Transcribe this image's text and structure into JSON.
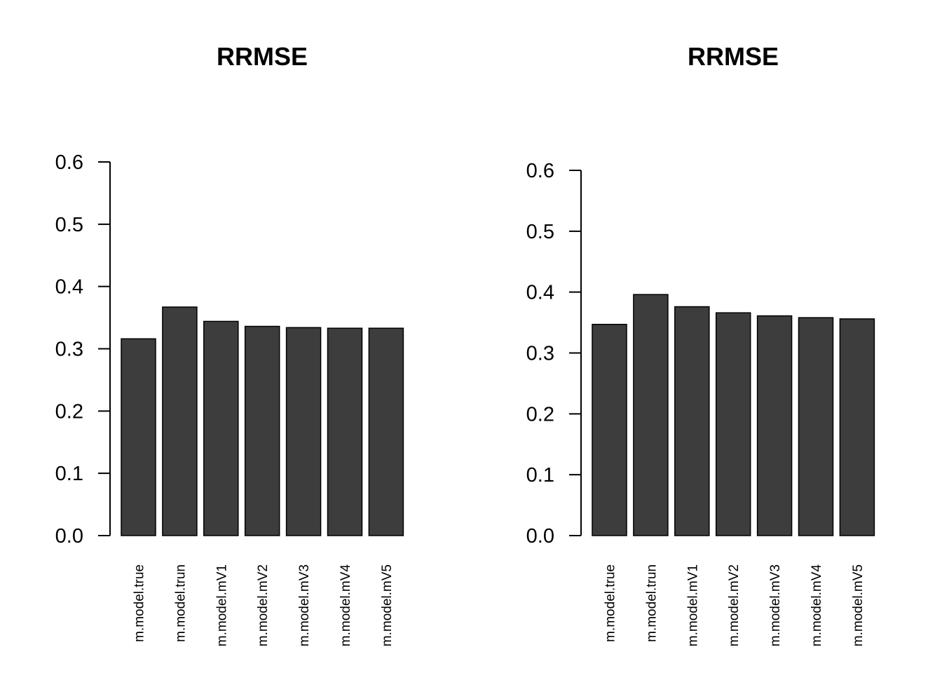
{
  "chart_data": [
    {
      "type": "bar",
      "title": "RRMSE",
      "xlabel": "",
      "ylabel": "",
      "categories": [
        "m.model.true",
        "m.model.trun",
        "m.model.mV1",
        "m.model.mV2",
        "m.model.mV3",
        "m.model.mV4",
        "m.model.mV5"
      ],
      "values": [
        0.316,
        0.367,
        0.344,
        0.336,
        0.334,
        0.333,
        0.333
      ],
      "ylim": [
        0,
        0.6
      ],
      "yticks": [
        "0.0",
        "0.1",
        "0.2",
        "0.3",
        "0.4",
        "0.5",
        "0.6"
      ],
      "bar_color": "#3d3d3d",
      "grid": false
    },
    {
      "type": "bar",
      "title": "RRMSE",
      "xlabel": "",
      "ylabel": "",
      "categories": [
        "m.model.true",
        "m.model.trun",
        "m.model.mV1",
        "m.model.mV2",
        "m.model.mV3",
        "m.model.mV4",
        "m.model.mV5"
      ],
      "values": [
        0.347,
        0.396,
        0.376,
        0.366,
        0.361,
        0.358,
        0.356
      ],
      "ylim": [
        0,
        0.6
      ],
      "yticks": [
        "0.0",
        "0.1",
        "0.2",
        "0.3",
        "0.4",
        "0.5",
        "0.6"
      ],
      "bar_color": "#3d3d3d",
      "grid": false
    }
  ]
}
